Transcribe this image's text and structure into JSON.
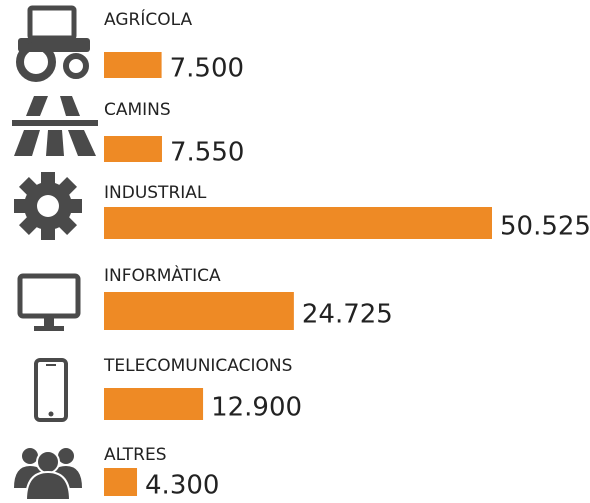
{
  "chart_data": {
    "type": "bar",
    "orientation": "horizontal",
    "categories": [
      "AGRÍCOLA",
      "CAMINS",
      "INDUSTRIAL",
      "INFORMÀTICA",
      "TELECOMUNICACIONS",
      "ALTRES"
    ],
    "values": [
      7500,
      7550,
      50525,
      24725,
      12900,
      4300
    ],
    "value_labels": [
      "7.500",
      "7.550",
      "50.525",
      "24.725",
      "12.900",
      "4.300"
    ],
    "color": "#ee8a25"
  }
}
